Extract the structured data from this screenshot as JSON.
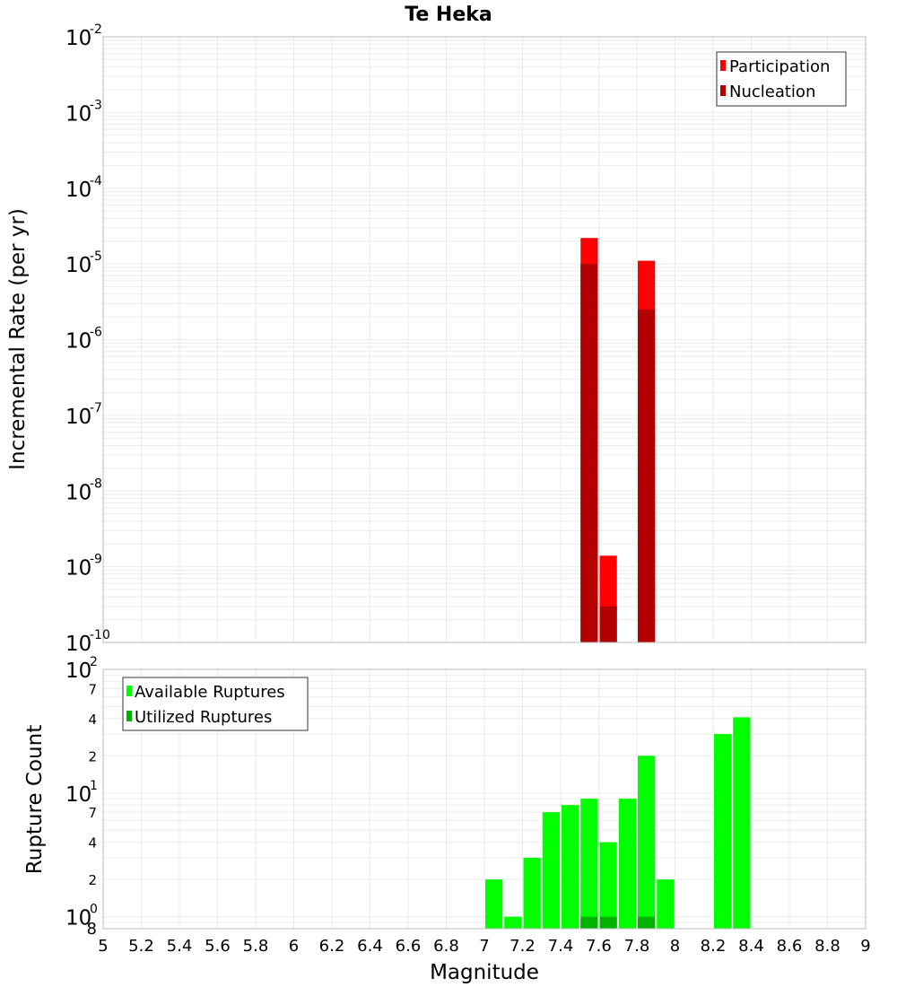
{
  "chart_data": [
    {
      "type": "bar",
      "title": "Te Heka",
      "xlabel": "",
      "ylabel": "Incremental Rate (per yr)",
      "yscale": "log",
      "ylim": [
        1e-10,
        0.01
      ],
      "xlim": [
        5,
        9
      ],
      "bar_width": 0.1,
      "grid": true,
      "legend_position": "top-right",
      "y_ticks": [
        {
          "base": "10",
          "exp": "-10",
          "value": 1e-10
        },
        {
          "base": "10",
          "exp": "-9",
          "value": 1e-09
        },
        {
          "base": "10",
          "exp": "-8",
          "value": 1e-08
        },
        {
          "base": "10",
          "exp": "-7",
          "value": 1e-07
        },
        {
          "base": "10",
          "exp": "-6",
          "value": 1e-06
        },
        {
          "base": "10",
          "exp": "-5",
          "value": 1e-05
        },
        {
          "base": "10",
          "exp": "-4",
          "value": 0.0001
        },
        {
          "base": "10",
          "exp": "-3",
          "value": 0.001
        },
        {
          "base": "10",
          "exp": "-2",
          "value": 0.01
        }
      ],
      "series": [
        {
          "name": "Participation",
          "color": "#ff0000",
          "x": [
            7.55,
            7.65,
            7.85
          ],
          "values": [
            2.2e-05,
            1.4e-09,
            1.1e-05
          ]
        },
        {
          "name": "Nucleation",
          "color": "#b30000",
          "x": [
            7.55,
            7.65,
            7.85
          ],
          "values": [
            1e-05,
            3e-10,
            2.5e-06
          ]
        }
      ]
    },
    {
      "type": "bar",
      "title": "",
      "xlabel": "Magnitude",
      "ylabel": "Rupture Count",
      "yscale": "log",
      "ylim": [
        0.8,
        100
      ],
      "xlim": [
        5,
        9
      ],
      "bar_width": 0.1,
      "grid": true,
      "legend_position": "top-left",
      "x_ticks": [
        "5",
        "5.2",
        "5.4",
        "5.6",
        "5.8",
        "6",
        "6.2",
        "6.4",
        "6.6",
        "6.8",
        "7",
        "7.2",
        "7.4",
        "7.6",
        "7.8",
        "8",
        "8.2",
        "8.4",
        "8.6",
        "8.8",
        "9"
      ],
      "y_major_ticks": [
        {
          "base": "10",
          "exp": "0",
          "value": 1
        },
        {
          "base": "10",
          "exp": "1",
          "value": 10
        },
        {
          "base": "10",
          "exp": "2",
          "value": 100
        }
      ],
      "y_minor_ticks": [
        {
          "label": "8",
          "value": 0.8
        },
        {
          "label": "2",
          "value": 2
        },
        {
          "label": "4",
          "value": 4
        },
        {
          "label": "7",
          "value": 7
        },
        {
          "label": "2",
          "value": 20
        },
        {
          "label": "4",
          "value": 40
        },
        {
          "label": "7",
          "value": 70
        }
      ],
      "series": [
        {
          "name": "Available Ruptures",
          "color": "#00ff00",
          "x": [
            7.05,
            7.15,
            7.25,
            7.35,
            7.45,
            7.55,
            7.65,
            7.75,
            7.85,
            7.95,
            8.25,
            8.35
          ],
          "values": [
            2,
            1,
            3,
            7,
            8,
            9,
            4,
            9,
            20,
            2,
            30,
            41
          ]
        },
        {
          "name": "Utilized Ruptures",
          "color": "#00b300",
          "x": [
            7.55,
            7.65,
            7.85
          ],
          "values": [
            1,
            1,
            1
          ]
        }
      ]
    }
  ]
}
